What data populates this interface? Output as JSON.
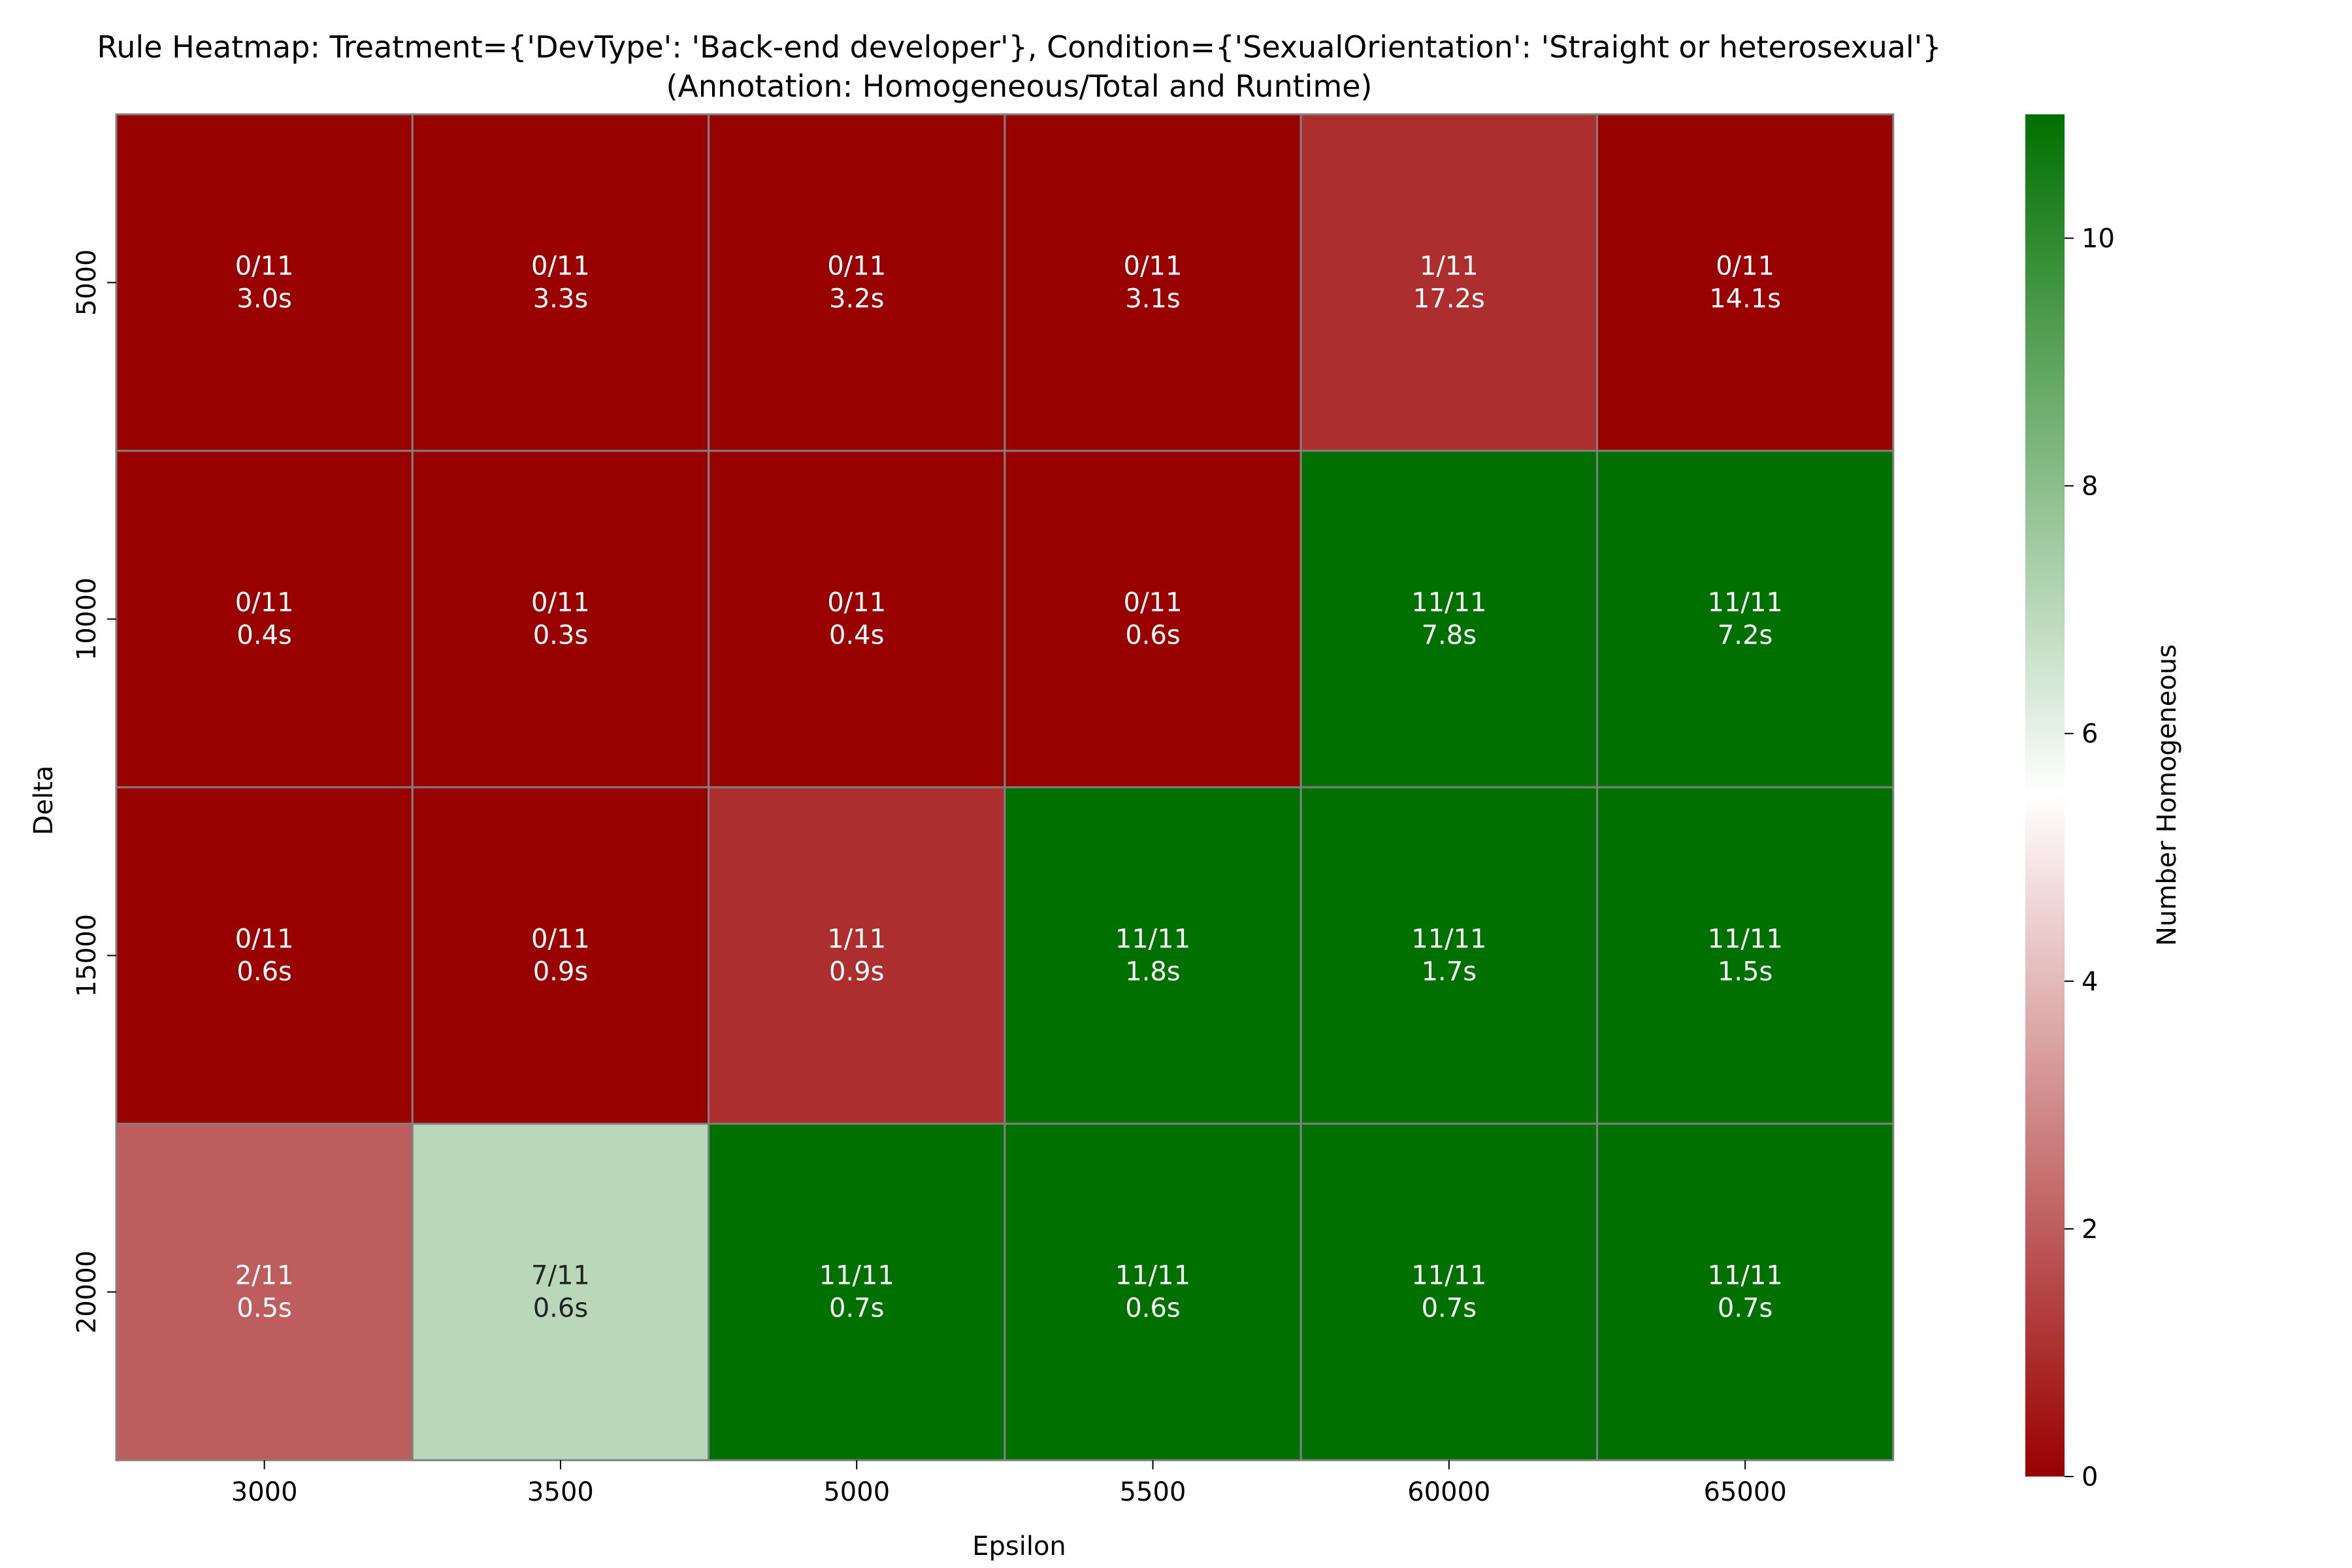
{
  "chart_data": {
    "type": "heatmap",
    "title_lines": [
      "Rule Heatmap: Treatment={'DevType': 'Back-end developer'}, Condition={'SexualOrientation': 'Straight or heterosexual'}",
      "(Annotation: Homogeneous/Total and Runtime)"
    ],
    "xlabel": "Epsilon",
    "ylabel": "Delta",
    "x_categories": [
      "3000",
      "3500",
      "5000",
      "5500",
      "60000",
      "65000"
    ],
    "y_categories": [
      "5000",
      "10000",
      "15000",
      "20000"
    ],
    "total": 11,
    "values": [
      [
        0,
        0,
        0,
        0,
        1,
        0
      ],
      [
        0,
        0,
        0,
        0,
        11,
        11
      ],
      [
        0,
        0,
        1,
        11,
        11,
        11
      ],
      [
        2,
        7,
        11,
        11,
        11,
        11
      ]
    ],
    "cell_labels": [
      [
        "0/11",
        "0/11",
        "0/11",
        "0/11",
        "1/11",
        "0/11"
      ],
      [
        "0/11",
        "0/11",
        "0/11",
        "0/11",
        "11/11",
        "11/11"
      ],
      [
        "0/11",
        "0/11",
        "1/11",
        "11/11",
        "11/11",
        "11/11"
      ],
      [
        "2/11",
        "7/11",
        "11/11",
        "11/11",
        "11/11",
        "11/11"
      ]
    ],
    "runtimes": [
      [
        "3.0s",
        "3.3s",
        "3.2s",
        "3.1s",
        "17.2s",
        "14.1s"
      ],
      [
        "0.4s",
        "0.3s",
        "0.4s",
        "0.6s",
        "7.8s",
        "7.2s"
      ],
      [
        "0.6s",
        "0.9s",
        "0.9s",
        "1.8s",
        "1.7s",
        "1.5s"
      ],
      [
        "0.5s",
        "0.6s",
        "0.7s",
        "0.6s",
        "0.7s",
        "0.7s"
      ]
    ],
    "colorbar": {
      "label": "Number Homogeneous",
      "range": [
        0,
        11
      ],
      "ticks": [
        0,
        2,
        4,
        6,
        8,
        10
      ],
      "colors": [
        "#990000",
        "#ffffff",
        "#007000"
      ]
    },
    "cell_border_color": "#808080",
    "annotation_colors": {
      "dark": "#ffffff",
      "light": "#222222"
    }
  }
}
